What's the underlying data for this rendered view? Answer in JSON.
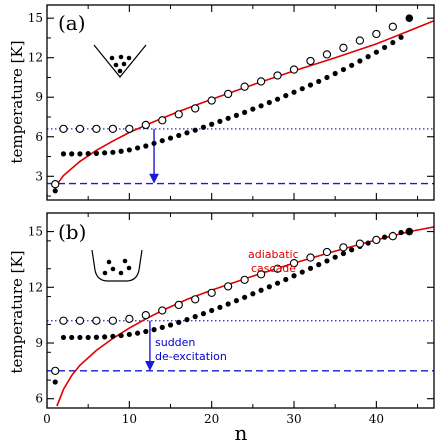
{
  "chart_data": [
    {
      "type": "scatter",
      "panel_label": "(a)",
      "ylabel": "temperature [K]",
      "xlabel": "",
      "xlim": [
        0,
        47
      ],
      "ylim": [
        1.2,
        16
      ],
      "xticks": [
        0,
        10,
        20,
        30,
        40
      ],
      "yticks": [
        3,
        6,
        9,
        12,
        15
      ],
      "xtick_labels": [
        "",
        "",
        "",
        "",
        ""
      ],
      "ytick_labels": [
        "3",
        "6",
        "9",
        "12",
        "15"
      ],
      "colors": {
        "curve": "#e00000",
        "dotted": "#2828c8",
        "dashed": "#1a1ad8",
        "arrow": "#1a1ad8"
      },
      "red_curve": [
        [
          1,
          2.2
        ],
        [
          2,
          3.06
        ],
        [
          4,
          4.13
        ],
        [
          6,
          4.97
        ],
        [
          8,
          5.67
        ],
        [
          10,
          6.32
        ],
        [
          13,
          7.15
        ],
        [
          16,
          7.92
        ],
        [
          20,
          8.85
        ],
        [
          25,
          9.95
        ],
        [
          30,
          11.0
        ],
        [
          35,
          12.0
        ],
        [
          40,
          13.05
        ],
        [
          44,
          14.05
        ],
        [
          47,
          14.8
        ]
      ],
      "dotted_line_y": 6.6,
      "dashed_line_y": 2.45,
      "arrow": {
        "x": 13,
        "y_from": 6.6,
        "y_to": 2.45
      },
      "open_circles": {
        "x": [
          1,
          2,
          4,
          6,
          8,
          10,
          12,
          14,
          16,
          18,
          20,
          22,
          24,
          26,
          28,
          30,
          32,
          34,
          36,
          38,
          40,
          42
        ],
        "y": [
          2.4,
          6.6,
          6.6,
          6.6,
          6.6,
          6.6,
          6.9,
          7.25,
          7.7,
          8.15,
          8.75,
          9.25,
          9.8,
          10.2,
          10.65,
          11.1,
          11.75,
          12.25,
          12.75,
          13.3,
          13.8,
          14.35
        ]
      },
      "filled_dots": {
        "x": [
          1,
          2,
          3,
          4,
          5,
          6,
          7,
          8,
          9,
          10,
          11,
          12,
          13,
          14,
          15,
          16,
          17,
          18,
          19,
          20,
          21,
          22,
          23,
          24,
          25,
          26,
          27,
          28,
          29,
          30,
          31,
          32,
          33,
          34,
          35,
          36,
          37,
          38,
          39,
          40,
          41,
          42,
          43
        ],
        "y": [
          1.9,
          4.7,
          4.7,
          4.7,
          4.72,
          4.74,
          4.78,
          4.82,
          4.9,
          5.0,
          5.15,
          5.3,
          5.5,
          5.7,
          5.9,
          6.1,
          6.3,
          6.5,
          6.72,
          6.95,
          7.17,
          7.4,
          7.62,
          7.85,
          8.1,
          8.35,
          8.6,
          8.85,
          9.12,
          9.38,
          9.65,
          9.93,
          10.2,
          10.5,
          10.8,
          11.1,
          11.42,
          11.75,
          12.08,
          12.42,
          12.78,
          13.15,
          13.55
        ]
      },
      "terminal_point": [
        44,
        15.0
      ]
    },
    {
      "type": "scatter",
      "panel_label": "(b)",
      "ylabel": "temperature [K]",
      "xlabel": "n",
      "xlim": [
        0,
        47
      ],
      "ylim": [
        5.5,
        16
      ],
      "xticks": [
        0,
        10,
        20,
        30,
        40
      ],
      "yticks": [
        6,
        9,
        12,
        15
      ],
      "xtick_labels": [
        "0",
        "10",
        "20",
        "30",
        "40"
      ],
      "ytick_labels": [
        "6",
        "9",
        "12",
        "15"
      ],
      "colors": {
        "curve": "#e00000",
        "dotted": "#2828c8",
        "dashed": "#1a1ad8",
        "arrow": "#1a1ad8"
      },
      "red_curve": [
        [
          1.2,
          5.6
        ],
        [
          2,
          6.5
        ],
        [
          3,
          7.25
        ],
        [
          4,
          7.8
        ],
        [
          6,
          8.6
        ],
        [
          8,
          9.25
        ],
        [
          10,
          9.8
        ],
        [
          12,
          10.3
        ],
        [
          14,
          10.75
        ],
        [
          17,
          11.35
        ],
        [
          20,
          11.85
        ],
        [
          25,
          12.6
        ],
        [
          30,
          13.3
        ],
        [
          35,
          13.95
        ],
        [
          40,
          14.55
        ],
        [
          44,
          15.0
        ],
        [
          47,
          15.25
        ]
      ],
      "dotted_line_y": 10.2,
      "dashed_line_y": 7.5,
      "arrow": {
        "x": 12.5,
        "y_from": 10.2,
        "y_to": 7.5
      },
      "open_circles": {
        "x": [
          1,
          2,
          4,
          6,
          8,
          10,
          12,
          14,
          16,
          18,
          20,
          22,
          24,
          26,
          28,
          30,
          32,
          34,
          36,
          38,
          40,
          42
        ],
        "y": [
          7.5,
          10.2,
          10.2,
          10.2,
          10.2,
          10.3,
          10.5,
          10.75,
          11.05,
          11.35,
          11.7,
          12.05,
          12.4,
          12.7,
          13.0,
          13.3,
          13.6,
          13.9,
          14.15,
          14.35,
          14.55,
          14.75
        ]
      },
      "filled_dots": {
        "x": [
          1,
          2,
          3,
          4,
          5,
          6,
          7,
          8,
          9,
          10,
          11,
          12,
          13,
          14,
          15,
          16,
          17,
          18,
          19,
          20,
          21,
          22,
          23,
          24,
          25,
          26,
          27,
          28,
          29,
          30,
          31,
          32,
          33,
          34,
          35,
          36,
          37,
          38,
          39,
          40,
          41,
          42,
          43
        ],
        "y": [
          6.9,
          9.3,
          9.3,
          9.3,
          9.3,
          9.31,
          9.33,
          9.36,
          9.4,
          9.46,
          9.53,
          9.62,
          9.72,
          9.84,
          9.97,
          10.11,
          10.26,
          10.42,
          10.58,
          10.75,
          10.92,
          11.1,
          11.28,
          11.46,
          11.65,
          11.84,
          12.03,
          12.22,
          12.42,
          12.62,
          12.82,
          13.02,
          13.22,
          13.42,
          13.62,
          13.82,
          14.02,
          14.2,
          14.38,
          14.55,
          14.7,
          14.85,
          14.95
        ]
      },
      "terminal_point": [
        44,
        15.0
      ],
      "annotations": {
        "red_line1": "adiabatic",
        "red_line2": "cascade",
        "blue_line1": "sudden",
        "blue_line2": "de-excitation"
      }
    }
  ]
}
